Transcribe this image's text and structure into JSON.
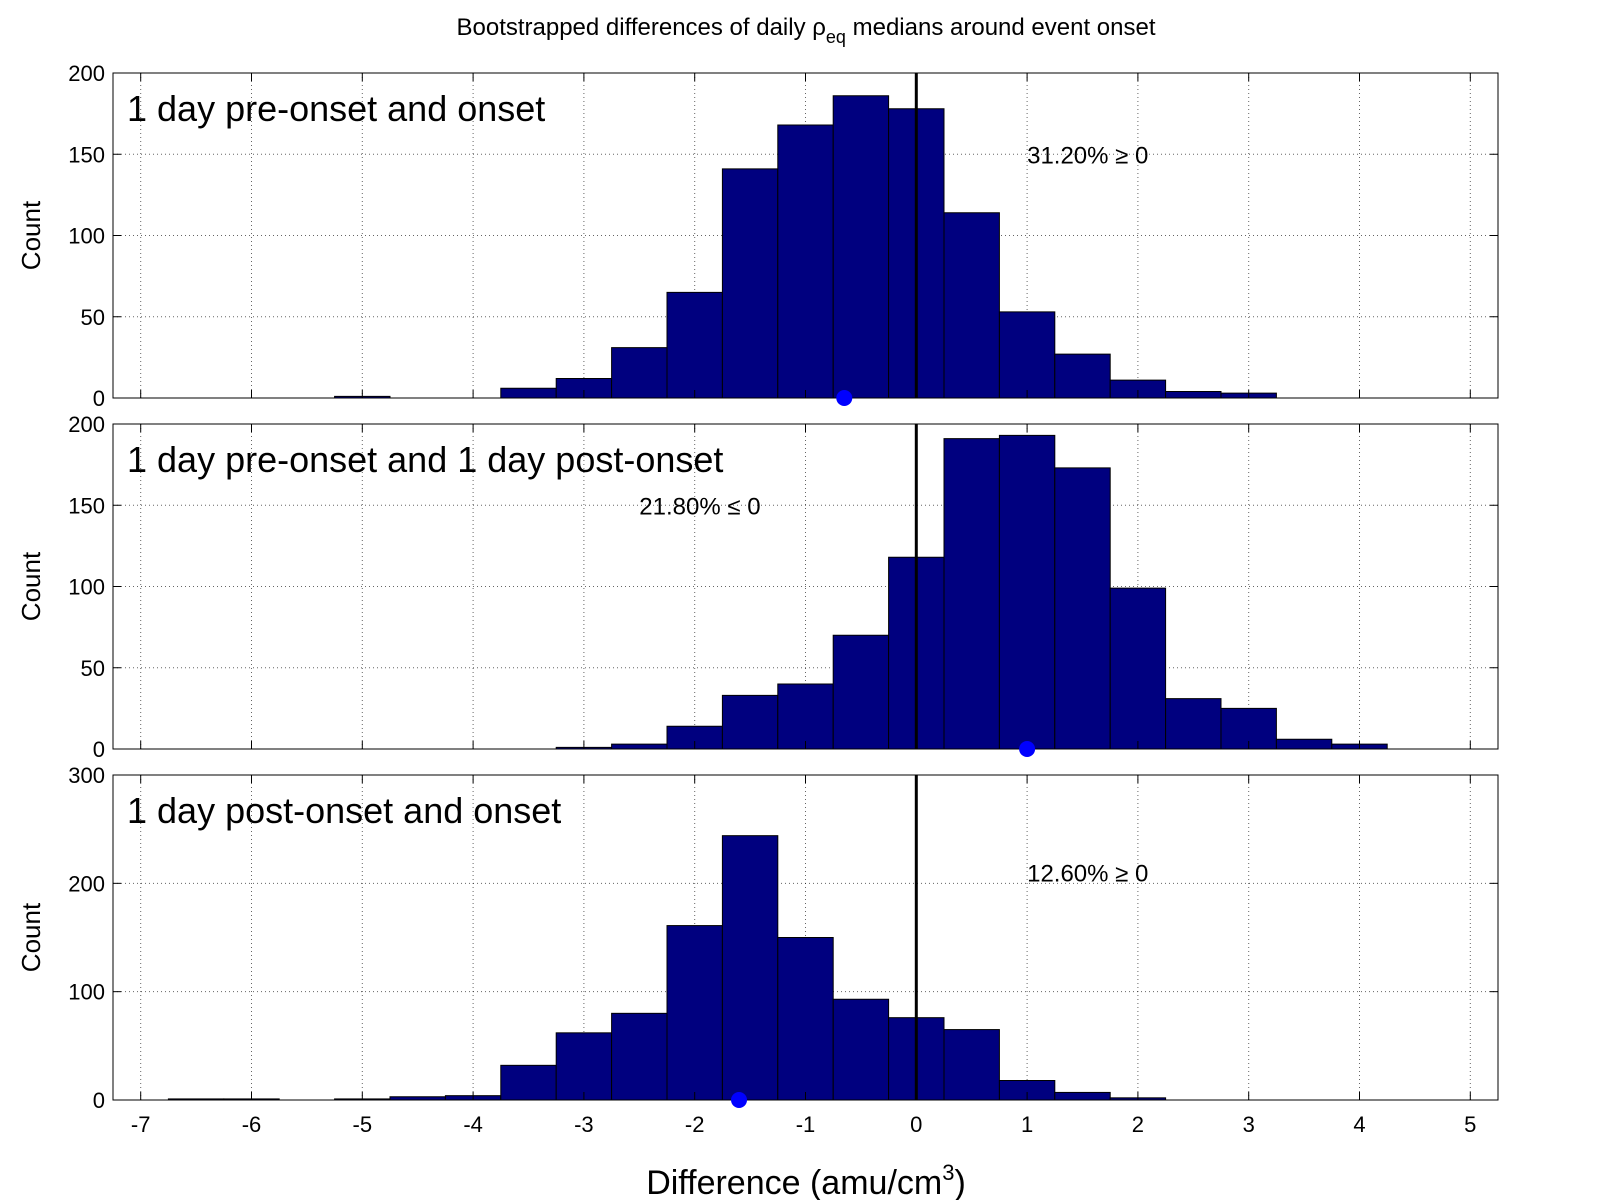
{
  "figure": {
    "title_prefix": "Bootstrapped differences of daily ",
    "title_symbol": "ρ",
    "title_subscript": "eq",
    "title_suffix": " medians around event onset",
    "xlabel_prefix": "Difference (amu/cm",
    "xlabel_superscript": "3",
    "xlabel_suffix": ")",
    "colors": {
      "bar_fill": "#00007F",
      "bar_edge": "#000000",
      "marker": "#0000FF",
      "zero_line": "#000000",
      "grid": "#000000"
    }
  },
  "chart_data": [
    {
      "type": "bar",
      "panel_label": "1 day pre-onset and onset",
      "ylabel": "Count",
      "xlim": [
        -7.25,
        5.25
      ],
      "ylim": [
        0,
        200
      ],
      "xticks": [
        -7,
        -6,
        -5,
        -4,
        -3,
        -2,
        -1,
        0,
        1,
        2,
        3,
        4,
        5
      ],
      "yticks": [
        0,
        50,
        100,
        150,
        200
      ],
      "show_xtick_labels": false,
      "bin_width": 0.5,
      "bin_starts": [
        -5.25,
        -3.75,
        -3.25,
        -2.75,
        -2.25,
        -1.75,
        -1.25,
        -0.75,
        -0.25,
        0.25,
        0.75,
        1.25,
        1.75,
        2.25,
        2.75
      ],
      "values": [
        1,
        6,
        12,
        31,
        65,
        141,
        168,
        186,
        178,
        114,
        53,
        27,
        11,
        4,
        3
      ],
      "marker_x": -0.65,
      "annotation": "31.20% ≥ 0",
      "annotation_x": 1.0,
      "annotation_y": 150,
      "grid": true
    },
    {
      "type": "bar",
      "panel_label": "1 day pre-onset and 1 day post-onset",
      "ylabel": "Count",
      "xlim": [
        -7.25,
        5.25
      ],
      "ylim": [
        0,
        200
      ],
      "xticks": [
        -7,
        -6,
        -5,
        -4,
        -3,
        -2,
        -1,
        0,
        1,
        2,
        3,
        4,
        5
      ],
      "yticks": [
        0,
        50,
        100,
        150,
        200
      ],
      "show_xtick_labels": false,
      "bin_width": 0.5,
      "bin_starts": [
        -3.25,
        -2.75,
        -2.25,
        -1.75,
        -1.25,
        -0.75,
        -0.25,
        0.25,
        0.75,
        1.25,
        1.75,
        2.25,
        2.75,
        3.25,
        3.75
      ],
      "values": [
        1,
        3,
        14,
        33,
        40,
        70,
        118,
        191,
        193,
        173,
        99,
        31,
        25,
        6,
        3
      ],
      "marker_x": 1.0,
      "annotation": "21.80% ≤ 0",
      "annotation_x": -2.5,
      "annotation_y": 150,
      "grid": true
    },
    {
      "type": "bar",
      "panel_label": "1 day post-onset and onset",
      "ylabel": "Count",
      "xlim": [
        -7.25,
        5.25
      ],
      "ylim": [
        0,
        300
      ],
      "xticks": [
        -7,
        -6,
        -5,
        -4,
        -3,
        -2,
        -1,
        0,
        1,
        2,
        3,
        4,
        5
      ],
      "yticks": [
        0,
        100,
        200,
        300
      ],
      "show_xtick_labels": true,
      "bin_width": 0.5,
      "bin_starts": [
        -6.75,
        -6.25,
        -5.25,
        -4.75,
        -4.25,
        -3.75,
        -3.25,
        -2.75,
        -2.25,
        -1.75,
        -1.25,
        -0.75,
        -0.25,
        0.25,
        0.75,
        1.25,
        1.75
      ],
      "values": [
        1,
        1,
        1,
        3,
        4,
        32,
        62,
        80,
        161,
        244,
        150,
        93,
        76,
        65,
        18,
        7,
        2
      ],
      "marker_x": -1.6,
      "annotation": "12.60% ≥ 0",
      "annotation_x": 1.0,
      "annotation_y": 210,
      "grid": true
    }
  ]
}
